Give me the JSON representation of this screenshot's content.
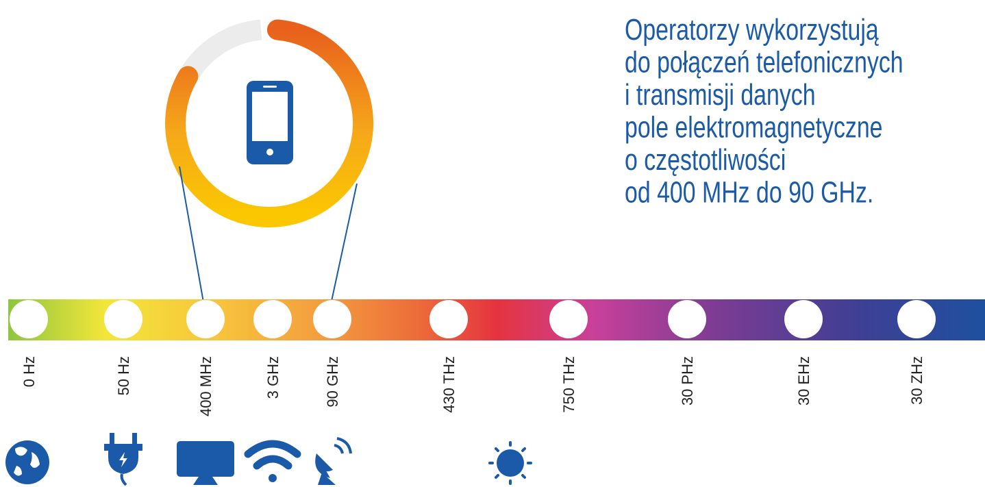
{
  "heading": [
    "Operatorzy wykorzystują",
    "do połączeń telefonicznych",
    "i transmisji danych",
    "pole elektromagnetyczne",
    "o częstotliwości",
    "od 400 MHz do 90 GHz."
  ],
  "scale": [
    "0 Hz",
    "50 Hz",
    "400 MHz",
    "3 GHz",
    "90 GHz",
    "430 THz",
    "750 THz",
    "30 PHz",
    "30 EHz",
    "30 ZHz"
  ]
}
